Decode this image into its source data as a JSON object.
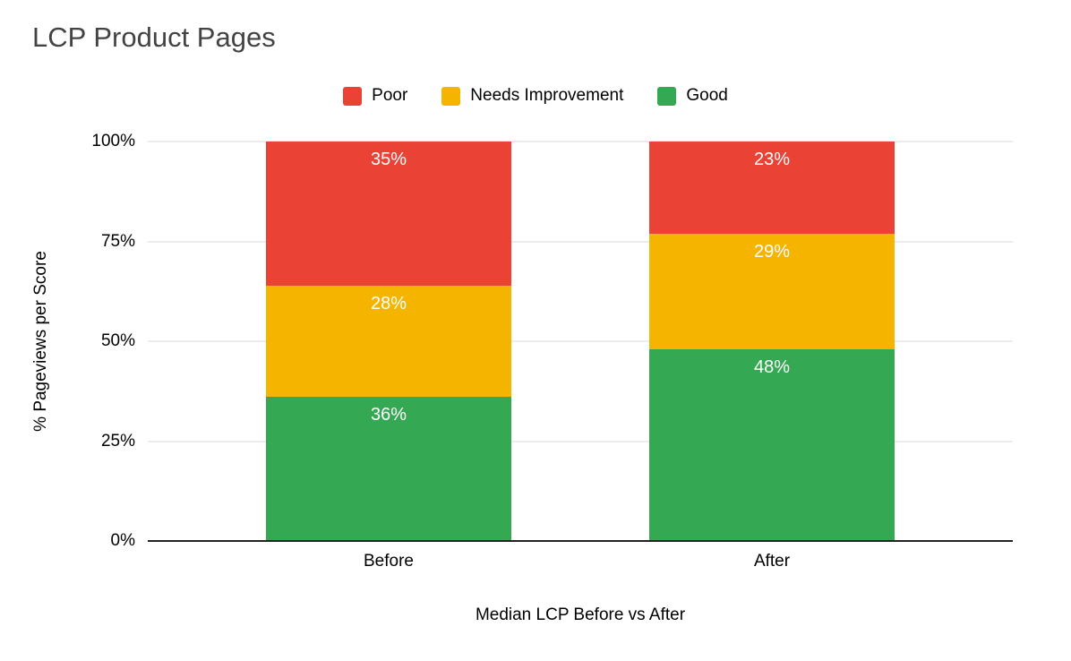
{
  "title": "LCP Product Pages",
  "chart_data": {
    "type": "bar",
    "stacked": true,
    "title": "LCP Product Pages",
    "xlabel": "Median LCP Before vs After",
    "ylabel": "% Pageviews per Score",
    "categories": [
      "Before",
      "After"
    ],
    "series": [
      {
        "name": "Good",
        "color": "#34A853",
        "values": [
          36,
          48
        ]
      },
      {
        "name": "Needs Improvement",
        "color": "#F4B400",
        "values": [
          28,
          29
        ]
      },
      {
        "name": "Poor",
        "color": "#EA4335",
        "values": [
          35,
          23
        ]
      }
    ],
    "legend": {
      "position": "top",
      "items": [
        {
          "label": "Poor",
          "color": "#EA4335"
        },
        {
          "label": "Needs Improvement",
          "color": "#F4B400"
        },
        {
          "label": "Good",
          "color": "#34A853"
        }
      ]
    },
    "yticks": [
      {
        "value": 0,
        "label": "0%"
      },
      {
        "value": 25,
        "label": "25%"
      },
      {
        "value": 50,
        "label": "50%"
      },
      {
        "value": 75,
        "label": "75%"
      },
      {
        "value": 100,
        "label": "100%"
      }
    ],
    "ylim": [
      0,
      100
    ],
    "grid": true,
    "data_labels": true
  },
  "colors": {
    "background": "#ffffff",
    "title_text": "#434343",
    "axis_text": "#000000",
    "gridline": "#d9d9d9",
    "baseline": "#222222",
    "data_label_text": "#ffffff"
  }
}
